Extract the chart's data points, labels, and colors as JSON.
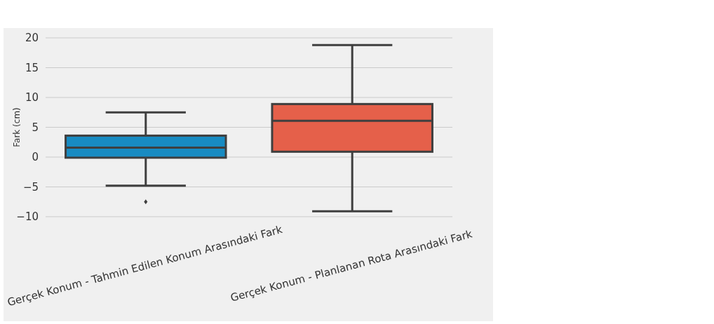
{
  "chart_data": {
    "type": "box",
    "ylabel": "Fark (cm)",
    "categories": [
      "Gerçek Konum - Tahmin Edilen Konum Arasındaki Fark",
      "Gerçek Konum - Planlanan Rota Arasındaki Fark"
    ],
    "colors": [
      "#188bc2",
      "#e5604a"
    ],
    "boxes": [
      {
        "low": -4.8,
        "q1": -0.1,
        "median": 1.6,
        "q3": 3.6,
        "high": 7.5,
        "outliers": [
          -7.5
        ]
      },
      {
        "low": -9.1,
        "q1": 0.9,
        "median": 6.1,
        "q3": 8.9,
        "high": 18.8
      }
    ],
    "ylim": [
      -10,
      20
    ],
    "yticks": [
      {
        "value": -10,
        "label": "−10"
      },
      {
        "value": -5,
        "label": "−5"
      },
      0,
      5,
      10,
      15,
      20
    ],
    "grid": "y"
  }
}
